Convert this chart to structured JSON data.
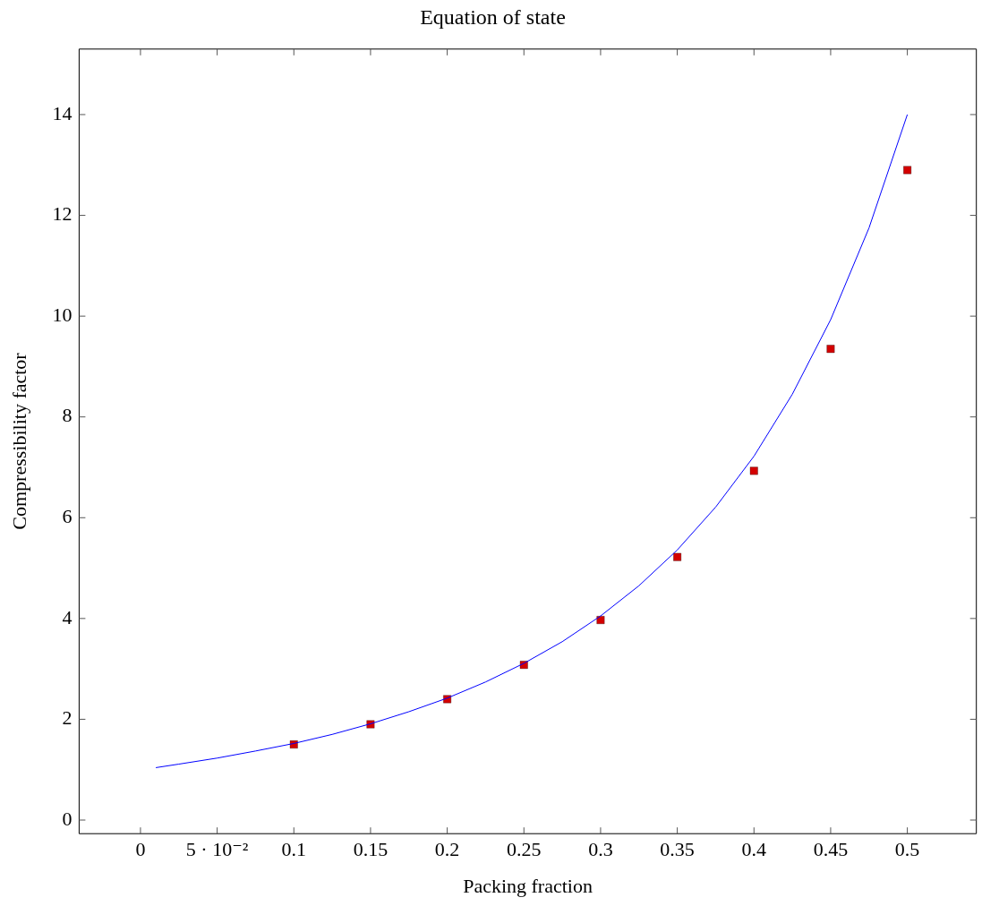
{
  "chart_data": {
    "type": "line",
    "title": "Equation of state",
    "xlabel": "Packing fraction",
    "ylabel": "Compressibility factor",
    "xlim": [
      -0.04,
      0.545
    ],
    "ylim": [
      -0.27,
      15.3
    ],
    "xticks": [
      0,
      {
        "value": 0.05,
        "label": "5 · 10⁻²"
      },
      0.1,
      0.15,
      0.2,
      0.25,
      0.3,
      0.35,
      0.4,
      0.45,
      0.5
    ],
    "yticks": [
      0,
      2,
      4,
      6,
      8,
      10,
      12,
      14
    ],
    "grid": false,
    "legend": false,
    "series": [
      {
        "type": "line",
        "color": "#0000ff",
        "marker": "none",
        "x": [
          0.01,
          0.025,
          0.05,
          0.075,
          0.1,
          0.125,
          0.15,
          0.175,
          0.2,
          0.225,
          0.25,
          0.275,
          0.3,
          0.325,
          0.35,
          0.375,
          0.4,
          0.425,
          0.45,
          0.475,
          0.5
        ],
        "values": [
          1.04,
          1.11,
          1.23,
          1.37,
          1.52,
          1.7,
          1.91,
          2.15,
          2.42,
          2.74,
          3.11,
          3.54,
          4.05,
          4.65,
          5.36,
          6.21,
          7.22,
          8.45,
          9.93,
          11.75,
          14
        ]
      },
      {
        "type": "scatter",
        "color": "#d40000",
        "marker": "square",
        "x": [
          0.1,
          0.15,
          0.2,
          0.25,
          0.3,
          0.35,
          0.4,
          0.45,
          0.5
        ],
        "values": [
          1.5,
          1.9,
          2.4,
          3.08,
          3.97,
          5.22,
          6.93,
          9.35,
          12.9
        ]
      }
    ]
  }
}
